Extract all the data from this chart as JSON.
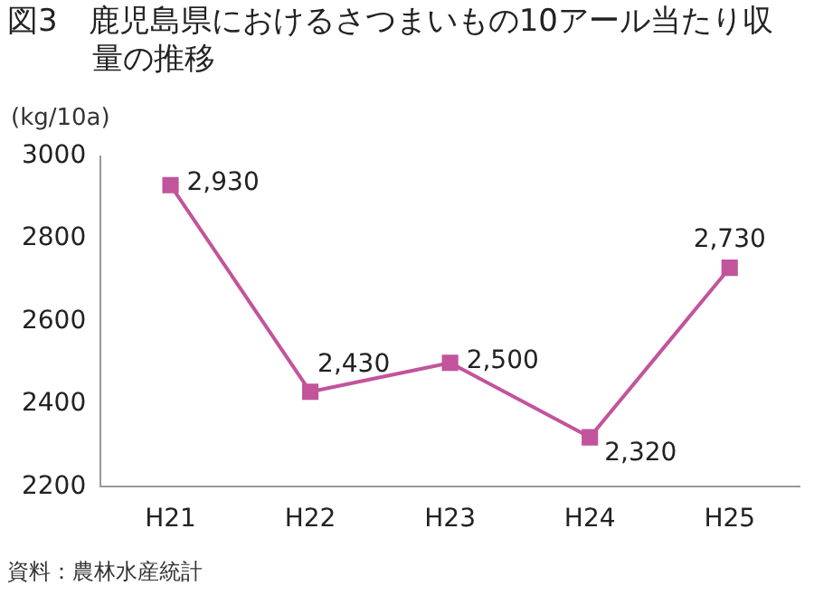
{
  "chart_data": {
    "type": "line",
    "title": "図3　鹿児島県におけるさつまいもの10アール当たり収量の推移",
    "ylabel": "(kg/10a)",
    "categories": [
      "H21",
      "H22",
      "H23",
      "H24",
      "H25"
    ],
    "series": [
      {
        "color": "#c2549c",
        "values": [
          2930,
          2430,
          2500,
          2320,
          2730
        ],
        "value_labels": [
          "2,930",
          "2,430",
          "2,500",
          "2,320",
          "2,730"
        ]
      }
    ],
    "ylim": [
      2200,
      3000
    ],
    "yticks": [
      2200,
      2400,
      2600,
      2800,
      3000
    ],
    "grid": false,
    "legend": false,
    "marker": "square",
    "line_style": "solid",
    "annotations": [
      "資料：農林水産統計"
    ]
  }
}
